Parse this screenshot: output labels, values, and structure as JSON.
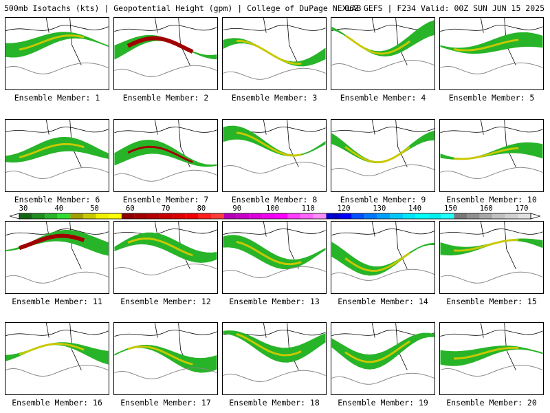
{
  "header": {
    "title_left": "500mb Isotachs (kts) | Geopotential Height (gpm) | College of DuPage NEXLAB",
    "title_right": "06Z GEFS | F234 Valid: 00Z SUN JUN 15 2025"
  },
  "colorbar": {
    "tick_labels": [
      "30",
      "40",
      "50",
      "60",
      "70",
      "80",
      "90",
      "100",
      "110",
      "120",
      "130",
      "140",
      "150",
      "160",
      "170"
    ],
    "bin_colors": [
      "#146414",
      "#1e8c1e",
      "#28b428",
      "#32dc32",
      "#a0a000",
      "#c8c800",
      "#f0f000",
      "#ffff00",
      "#8c0000",
      "#a00000",
      "#b40000",
      "#c80000",
      "#dc0000",
      "#f00000",
      "#ff1e1e",
      "#ff3c3c",
      "#b400b4",
      "#c800c8",
      "#dc00dc",
      "#f000f0",
      "#ff00ff",
      "#ff3cff",
      "#ff64ff",
      "#ff8cff",
      "#0000c8",
      "#0000ff",
      "#0050ff",
      "#0078ff",
      "#00a0ff",
      "#00c8ff",
      "#00e6ff",
      "#00ffff",
      "#00f0f0",
      "#20ffff",
      "#787878",
      "#909090",
      "#a8a8a8",
      "#c0c0c0",
      "#d0d0d0",
      "#e0e0e0"
    ]
  },
  "members": [
    {
      "label": "Ensemble Member: 1"
    },
    {
      "label": "Ensemble Member: 2"
    },
    {
      "label": "Ensemble Member: 3"
    },
    {
      "label": "Ensemble Member: 4"
    },
    {
      "label": "Ensemble Member: 5"
    },
    {
      "label": "Ensemble Member: 6"
    },
    {
      "label": "Ensemble Member: 7"
    },
    {
      "label": "Ensemble Member: 8"
    },
    {
      "label": "Ensemble Member: 9"
    },
    {
      "label": "Ensemble Member: 10"
    },
    {
      "label": "Ensemble Member: 11"
    },
    {
      "label": "Ensemble Member: 12"
    },
    {
      "label": "Ensemble Member: 13"
    },
    {
      "label": "Ensemble Member: 14"
    },
    {
      "label": "Ensemble Member: 15"
    },
    {
      "label": "Ensemble Member: 16"
    },
    {
      "label": "Ensemble Member: 17"
    },
    {
      "label": "Ensemble Member: 18"
    },
    {
      "label": "Ensemble Member: 19"
    },
    {
      "label": "Ensemble Member: 20"
    }
  ]
}
